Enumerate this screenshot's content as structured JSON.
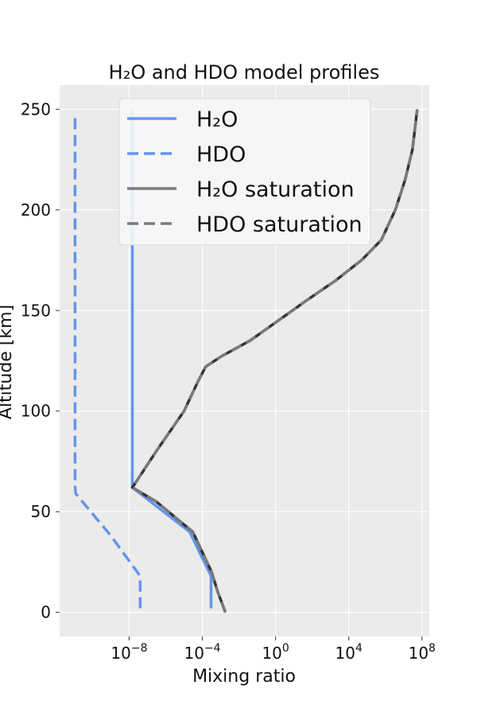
{
  "chart_data": {
    "type": "line",
    "title": "H₂O and HDO model profiles",
    "xlabel": "Mixing ratio",
    "ylabel": "Altitude [km]",
    "x_scale": "log",
    "xlim_log10": [
      -11.8,
      8.4
    ],
    "ylim": [
      -12,
      262
    ],
    "grid": true,
    "legend_position": "top-right",
    "x_ticks": [
      {
        "log10": -8,
        "label_base": "10",
        "label_exp": "−8"
      },
      {
        "log10": -4,
        "label_base": "10",
        "label_exp": "−4"
      },
      {
        "log10": 0,
        "label_base": "10",
        "label_exp": "0"
      },
      {
        "log10": 4,
        "label_base": "10",
        "label_exp": "4"
      },
      {
        "log10": 8,
        "label_base": "10",
        "label_exp": "8"
      }
    ],
    "y_ticks": [
      0,
      50,
      100,
      150,
      200,
      250
    ],
    "series": [
      {
        "name": "H₂O",
        "color": "#6495ED",
        "dash": "solid",
        "points": [
          {
            "x": 0.0003,
            "y": 2
          },
          {
            "x": 0.0003,
            "y": 18
          },
          {
            "x": 2e-05,
            "y": 40
          },
          {
            "x": 1.5e-08,
            "y": 62
          },
          {
            "x": 1.5e-08,
            "y": 250
          }
        ]
      },
      {
        "name": "HDO",
        "color": "#6495ED",
        "dash": "dashed",
        "points": [
          {
            "x": 4e-08,
            "y": 2
          },
          {
            "x": 4e-08,
            "y": 18
          },
          {
            "x": 1e-09,
            "y": 38
          },
          {
            "x": 1.2e-11,
            "y": 59
          },
          {
            "x": 1.1e-11,
            "y": 63
          },
          {
            "x": 1.1e-11,
            "y": 248
          }
        ]
      },
      {
        "name": "H₂O saturation",
        "color": "#7a7a7a",
        "dash": "solid",
        "points": [
          {
            "x": 0.0018,
            "y": 0
          },
          {
            "x": 0.0007,
            "y": 10
          },
          {
            "x": 0.00032,
            "y": 20
          },
          {
            "x": 3e-05,
            "y": 40
          },
          {
            "x": 3e-07,
            "y": 55
          },
          {
            "x": 1.5e-08,
            "y": 62
          },
          {
            "x": 3e-07,
            "y": 80
          },
          {
            "x": 1e-05,
            "y": 100
          },
          {
            "x": 6e-05,
            "y": 115
          },
          {
            "x": 0.00015,
            "y": 122
          },
          {
            "x": 0.001,
            "y": 127
          },
          {
            "x": 0.04,
            "y": 135
          },
          {
            "x": 1,
            "y": 144
          },
          {
            "x": 50,
            "y": 155
          },
          {
            "x": 2000,
            "y": 165
          },
          {
            "x": 50000,
            "y": 175
          },
          {
            "x": 600000,
            "y": 185
          },
          {
            "x": 3500000,
            "y": 200
          },
          {
            "x": 12000000,
            "y": 215
          },
          {
            "x": 30000000,
            "y": 230
          },
          {
            "x": 55000000,
            "y": 250
          }
        ]
      },
      {
        "name": "HDO saturation",
        "color": "#7a7a7a",
        "dash": "dashed",
        "points": [
          {
            "x": 0.0018,
            "y": 0
          },
          {
            "x": 0.0007,
            "y": 10
          },
          {
            "x": 0.00032,
            "y": 20
          },
          {
            "x": 3e-05,
            "y": 40
          },
          {
            "x": 3e-07,
            "y": 55
          },
          {
            "x": 1.5e-08,
            "y": 62
          },
          {
            "x": 3e-07,
            "y": 80
          },
          {
            "x": 1e-05,
            "y": 100
          },
          {
            "x": 6e-05,
            "y": 115
          },
          {
            "x": 0.00015,
            "y": 122
          },
          {
            "x": 0.001,
            "y": 127
          },
          {
            "x": 0.04,
            "y": 135
          },
          {
            "x": 1,
            "y": 144
          },
          {
            "x": 50,
            "y": 155
          },
          {
            "x": 2000,
            "y": 165
          },
          {
            "x": 50000,
            "y": 175
          },
          {
            "x": 600000,
            "y": 185
          },
          {
            "x": 3500000,
            "y": 200
          },
          {
            "x": 12000000,
            "y": 215
          },
          {
            "x": 30000000,
            "y": 230
          },
          {
            "x": 55000000,
            "y": 250
          }
        ]
      }
    ],
    "legend": [
      {
        "label": "H₂O",
        "color": "#6495ED",
        "dash": "solid"
      },
      {
        "label": "HDO",
        "color": "#6495ED",
        "dash": "dashed"
      },
      {
        "label": "H₂O saturation",
        "color": "#7a7a7a",
        "dash": "solid"
      },
      {
        "label": "HDO saturation",
        "color": "#7a7a7a",
        "dash": "dashed"
      }
    ]
  }
}
